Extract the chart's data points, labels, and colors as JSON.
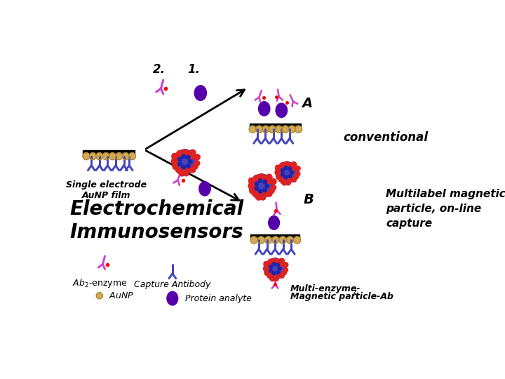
{
  "bg_color": "#ffffff",
  "magenta": "#CC44CC",
  "blue_ab": "#4444BB",
  "purple_np": "#5500AA",
  "gold": "#D4AA55",
  "gold_border": "#AA8833",
  "red": "#DD2222",
  "dark_blue": "#3333AA",
  "black": "#000000",
  "text_color": "#000000",
  "label_A": "A",
  "label_B": "B",
  "text_conventional": "conventional",
  "text_multilabel": "Multilabel magnetic\nparticle, on-line\ncapture",
  "text_electrochemical": "Electrochemical\nImmunosensors",
  "text_single": "Single electrode\nAuNP film",
  "text_capture": "Capture Antibody",
  "text_aunp": "AuNP",
  "text_protein": "Protein analyte",
  "text_multienzyme_line1": "Multi-enzyme-",
  "text_multienzyme_line2": "Magnetic particle-Ab",
  "text_multienzyme_sub": "2",
  "label_1": "1.",
  "label_2": "2."
}
